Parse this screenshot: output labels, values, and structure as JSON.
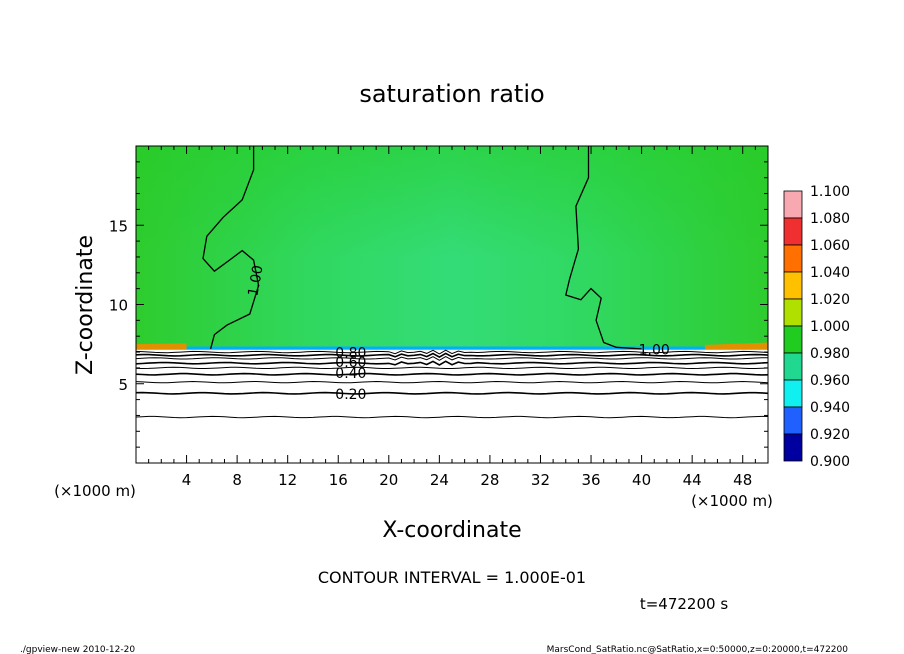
{
  "chart_data": {
    "type": "heatmap",
    "title": "saturation ratio",
    "xlabel": "X-coordinate",
    "ylabel": "Z-coordinate",
    "x_unit": "(×1000 m)",
    "y_unit": "(×1000 m)",
    "xlim": [
      0,
      50
    ],
    "ylim": [
      0,
      20
    ],
    "xticks": [
      4,
      8,
      12,
      16,
      20,
      24,
      28,
      32,
      36,
      40,
      44,
      48
    ],
    "yticks": [
      5,
      10,
      15
    ],
    "contour_interval_text": "CONTOUR INTERVAL = 1.000E-01",
    "time_text": "t=472200 s",
    "contour_labels": [
      {
        "text": "1.00",
        "x": 9.5,
        "z": 11.5,
        "rotate": -80
      },
      {
        "text": "1.00",
        "x": 41.0,
        "z": 7.1,
        "rotate": 0
      },
      {
        "text": "0.80",
        "x": 17.0,
        "z": 6.9,
        "rotate": 0
      },
      {
        "text": "0.60",
        "x": 17.0,
        "z": 6.3,
        "rotate": 0
      },
      {
        "text": "0.40",
        "x": 17.0,
        "z": 5.6,
        "rotate": 0
      },
      {
        "text": "0.20",
        "x": 17.0,
        "z": 4.3,
        "rotate": 0
      }
    ],
    "contour_levels_z": [
      {
        "level": 0.1,
        "z": 2.9
      },
      {
        "level": 0.2,
        "z": 4.4
      },
      {
        "level": 0.3,
        "z": 5.1
      },
      {
        "level": 0.4,
        "z": 5.6
      },
      {
        "level": 0.5,
        "z": 6.0
      },
      {
        "level": 0.6,
        "z": 6.3
      },
      {
        "level": 0.7,
        "z": 6.6
      },
      {
        "level": 0.8,
        "z": 6.8
      },
      {
        "level": 0.9,
        "z": 7.0
      }
    ],
    "colorbar": {
      "levels": [
        "1.100",
        "1.080",
        "1.060",
        "1.040",
        "1.020",
        "1.000",
        "0.980",
        "0.960",
        "0.940",
        "0.920",
        "0.900"
      ],
      "colors": [
        "#f7a8b0",
        "#f03030",
        "#ff7000",
        "#ffc000",
        "#b0e000",
        "#20cc20",
        "#20d890",
        "#10f0f0",
        "#2060ff",
        "#0000a0",
        "#5000a0"
      ]
    },
    "field_colors": {
      "dry_layer": "#ffffff",
      "upper_field": "#2ecc2e",
      "mid_field": "#30d860",
      "boundary_warm": "#e09000",
      "boundary_cool": "#00b0ff"
    }
  },
  "footer": {
    "left": "./gpview-new  2010-12-20",
    "right": "MarsCond_SatRatio.nc@SatRatio,x=0:50000,z=0:20000,t=472200"
  }
}
